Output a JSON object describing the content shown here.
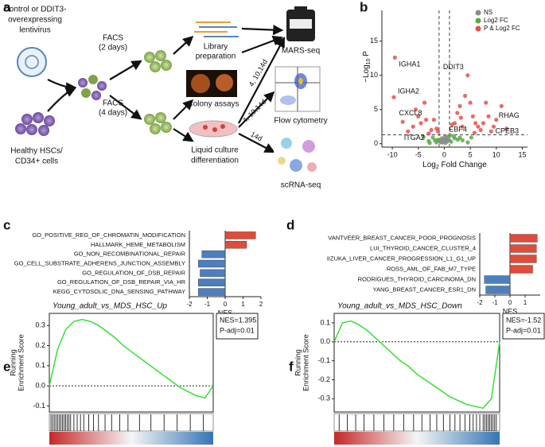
{
  "diagram": {
    "panel_label": "a",
    "lentivirus": [
      "Control or DDIT3-",
      "overexpressing",
      "lentivirus"
    ],
    "cells": [
      "Healthy HSCs/",
      "CD34+ cells"
    ],
    "facs_2": [
      "FACS",
      "(2 days)"
    ],
    "facs_4": [
      "FACS",
      "(4 days)"
    ],
    "library": [
      "Library",
      "preparation"
    ],
    "colony": "Colony assays",
    "culture": [
      "Liquid culture",
      "differentiation"
    ],
    "mars": "MARS-seq",
    "flow": "Flow cytometry",
    "scrna": "scRNA-seq",
    "times": [
      "4, 10,14d",
      "4, 10,14d",
      "14d"
    ]
  },
  "chart_data": [
    {
      "type": "scatter",
      "panel_label": "b",
      "xlabel": [
        "Log",
        "2",
        " Fold Change"
      ],
      "ylabel": [
        "−Log",
        "10",
        " P"
      ],
      "xlim": [
        -12,
        16
      ],
      "ylim": [
        -0.5,
        19.5
      ],
      "xticks": [
        -10,
        -5,
        0,
        5,
        10,
        15
      ],
      "yticks": [
        0,
        5,
        10,
        15
      ],
      "vlines": [
        -1,
        1
      ],
      "hline": 1.3,
      "legend": "top-right",
      "series": [
        {
          "name": "NS",
          "color": "#8c8c8c",
          "x": [
            -0.8,
            -0.5,
            -0.3,
            0,
            0.2,
            0.4,
            0.6,
            0.9,
            -0.6,
            0.1,
            0.5,
            -0.2,
            0.3,
            -0.9,
            0.8
          ],
          "values": [
            0.3,
            0.8,
            0.2,
            0.5,
            0.1,
            0.9,
            0.4,
            0.6,
            0.2,
            1.0,
            0.3,
            0.6,
            0.7,
            0.5,
            1.1
          ]
        },
        {
          "name": "Log2 FC",
          "color": "#5aa846",
          "x": [
            -3,
            -2.2,
            -1.5,
            -4,
            -1.2,
            1.3,
            2,
            3.5,
            1.8,
            4.5,
            2.6,
            -2.8,
            5.2,
            -1.8,
            1.1,
            3
          ],
          "values": [
            0.4,
            0.9,
            0.2,
            1.0,
            0.6,
            0.3,
            0.8,
            0.5,
            1.1,
            0.2,
            0.6,
            0.1,
            0.9,
            0.5,
            1.2,
            0.9
          ]
        },
        {
          "name": "P & Log2 FC",
          "color": "#e8504a",
          "x": [
            -9.5,
            -9.7,
            -3.5,
            -3,
            4.5,
            10,
            6.5,
            9.5,
            -6,
            -5,
            -4.5,
            -2.5,
            -2,
            -1.5,
            -7,
            -5.5,
            -3.8,
            2,
            2.5,
            3,
            3.5,
            4,
            5,
            5.5,
            6,
            7,
            7.5,
            8,
            8.5,
            9,
            11,
            12,
            1.5,
            -1.2,
            3.2,
            5.8,
            -8
          ],
          "values": [
            12.6,
            6.8,
            3.5,
            1.5,
            10,
            3.5,
            2.5,
            2.5,
            2.5,
            4,
            3,
            2,
            3.5,
            2.2,
            1.8,
            5,
            6,
            3,
            4.5,
            5.5,
            2.5,
            7,
            6,
            4,
            3,
            2,
            3,
            6,
            4,
            1.8,
            5.5,
            2.2,
            2.8,
            1.8,
            3.8,
            1.6,
            3.2
          ]
        }
      ],
      "annotations": [
        {
          "text": "IGHA1",
          "x": -9.5,
          "y": 12.6
        },
        {
          "text": "IGHA2",
          "x": -9.7,
          "y": 6.8
        },
        {
          "text": "CXCL8",
          "x": -3.5,
          "y": 3.5
        },
        {
          "text": "ITGA2",
          "x": -3,
          "y": 1.5
        },
        {
          "text": "DDIT3",
          "x": 4.5,
          "y": 10
        },
        {
          "text": "RHAG",
          "x": 10,
          "y": 3.5
        },
        {
          "text": "EBF4",
          "x": 6.5,
          "y": 2.5
        },
        {
          "text": "CPEB3",
          "x": 9.5,
          "y": 2.5
        }
      ]
    },
    {
      "type": "hbar",
      "panel_label": "c",
      "categories": [
        "GO_POSITIVE_REG_OF_CHROMATIN_MODIFICATION",
        "HALLMARK_HEME_METABOLISM",
        "GO_NON_RECOMBINATIONAL_REPAIR",
        "GO_CELL_SUBSTRATE_ADHERENS_JUNCTION_ASSEMBLY",
        "GO_REGULATION_OF_DSB_REPAIR",
        "GO_REGULATION_OF_DSB_REPAIR_VIA_HR",
        "KEGG_CYTOSOLIC_DNA_SENSING_PATHWAY"
      ],
      "values": [
        1.7,
        1.2,
        -1.3,
        -1.5,
        -1.4,
        -1.5,
        -1.5
      ],
      "color_positive": "#e04b3a",
      "color_negative": "#4d7fbf",
      "xlim": [
        -2,
        2
      ],
      "xticks": [
        -2,
        -1,
        0,
        1,
        2
      ],
      "xlabel": "NES"
    },
    {
      "type": "hbar",
      "panel_label": "d",
      "categories": [
        "VANTVEER_BREAST_CANCER_POOR_PROGNOSIS",
        "LUI_THYROID_CANCER_CLUSTER_4",
        "IIZUKA_LIVER_CANCER_PROGRESSION_L1_G1_UP",
        "ROSS_AML_OF_FAB_M7_TYPE",
        "RODRIGUES_THYROID_CARCINOMA_DN",
        "YANG_BREAST_CANCER_ESR1_DN"
      ],
      "values": [
        1.8,
        1.75,
        1.75,
        1.5,
        -1.7,
        -1.6
      ],
      "color_positive": "#e04b3a",
      "color_negative": "#4d7fbf",
      "xlim": [
        -2,
        2
      ],
      "xticks": [
        -2,
        -1,
        0,
        1
      ],
      "xlabel": "NES"
    },
    {
      "type": "line",
      "panel_label": "e",
      "title": "Young_adult_vs_MDS_HSC_Up",
      "ylabel": [
        "Running",
        "Enrichment Score"
      ],
      "stats": [
        "NES=1.395",
        "P-adj=0.01"
      ],
      "color": "#33e033",
      "xlim": [
        0,
        1
      ],
      "ylim": [
        -0.13,
        0.36
      ],
      "yticks": [
        0.3,
        0.2,
        0.1,
        {
          "value": 0,
          "label": "0.0"
        },
        -0.1
      ],
      "x": [
        0,
        0.05,
        0.1,
        0.15,
        0.2,
        0.25,
        0.3,
        0.35,
        0.4,
        0.45,
        0.5,
        0.55,
        0.6,
        0.65,
        0.7,
        0.75,
        0.8,
        0.85,
        0.9,
        0.95,
        1
      ],
      "values": [
        0,
        0.18,
        0.28,
        0.32,
        0.33,
        0.32,
        0.3,
        0.27,
        0.24,
        0.2,
        0.17,
        0.14,
        0.11,
        0.08,
        0.05,
        0.02,
        -0.01,
        -0.03,
        -0.05,
        -0.06,
        0
      ],
      "hits": [
        0.01,
        0.02,
        0.03,
        0.04,
        0.05,
        0.06,
        0.07,
        0.08,
        0.09,
        0.1,
        0.11,
        0.12,
        0.13,
        0.15,
        0.17,
        0.19,
        0.21,
        0.24,
        0.27,
        0.3,
        0.34,
        0.38,
        0.43,
        0.48,
        0.55,
        0.62,
        0.7,
        0.78,
        0.86,
        0.94
      ]
    },
    {
      "type": "line",
      "panel_label": "f",
      "title": "Young_adult_vs_MDS_HSC_Down",
      "ylabel": [
        "Running",
        "Enrichment Score"
      ],
      "stats": [
        "NES=-1.52",
        "P-adj=0.01"
      ],
      "color": "#33e033",
      "xlim": [
        0,
        1
      ],
      "ylim": [
        -0.37,
        0.15
      ],
      "yticks": [
        0.1,
        {
          "value": 0,
          "label": "0.0"
        },
        -0.1,
        -0.2,
        -0.3
      ],
      "x": [
        0,
        0.05,
        0.1,
        0.15,
        0.2,
        0.25,
        0.3,
        0.35,
        0.4,
        0.45,
        0.5,
        0.55,
        0.6,
        0.65,
        0.7,
        0.75,
        0.8,
        0.85,
        0.9,
        0.95,
        1
      ],
      "values": [
        0,
        0.1,
        0.11,
        0.09,
        0.06,
        0.02,
        -0.02,
        -0.06,
        -0.1,
        -0.13,
        -0.17,
        -0.2,
        -0.23,
        -0.26,
        -0.29,
        -0.31,
        -0.33,
        -0.34,
        -0.35,
        -0.3,
        0
      ],
      "hits": [
        0.03,
        0.08,
        0.13,
        0.18,
        0.24,
        0.3,
        0.36,
        0.42,
        0.48,
        0.53,
        0.58,
        0.62,
        0.66,
        0.7,
        0.73,
        0.76,
        0.79,
        0.82,
        0.84,
        0.86,
        0.88,
        0.9,
        0.91,
        0.92,
        0.93,
        0.94,
        0.95,
        0.96,
        0.97,
        0.98
      ]
    }
  ]
}
